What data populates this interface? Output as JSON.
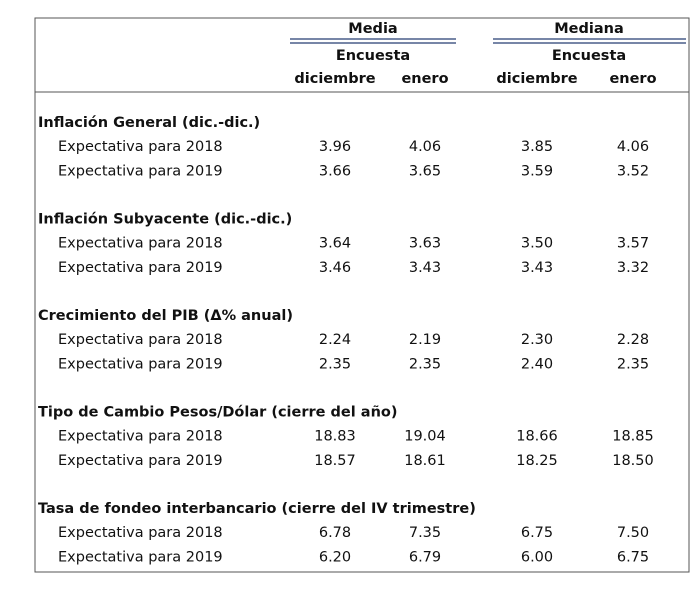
{
  "header": {
    "groups": [
      {
        "title": "Media",
        "subtitle": "Encuesta",
        "columns": [
          "diciembre",
          "enero"
        ]
      },
      {
        "title": "Mediana",
        "subtitle": "Encuesta",
        "columns": [
          "diciembre",
          "enero"
        ]
      }
    ]
  },
  "sections": [
    {
      "title": "Inflación General (dic.-dic.)",
      "rows": [
        {
          "label": "Expectativa para 2018",
          "values": [
            "3.96",
            "4.06",
            "3.85",
            "4.06"
          ]
        },
        {
          "label": "Expectativa para 2019",
          "values": [
            "3.66",
            "3.65",
            "3.59",
            "3.52"
          ]
        }
      ]
    },
    {
      "title": "Inflación Subyacente (dic.-dic.)",
      "rows": [
        {
          "label": "Expectativa para 2018",
          "values": [
            "3.64",
            "3.63",
            "3.50",
            "3.57"
          ]
        },
        {
          "label": "Expectativa para 2019",
          "values": [
            "3.46",
            "3.43",
            "3.43",
            "3.32"
          ]
        }
      ]
    },
    {
      "title": "Crecimiento del PIB (Δ% anual)",
      "rows": [
        {
          "label": "Expectativa para 2018",
          "values": [
            "2.24",
            "2.19",
            "2.30",
            "2.28"
          ]
        },
        {
          "label": "Expectativa para 2019",
          "values": [
            "2.35",
            "2.35",
            "2.40",
            "2.35"
          ]
        }
      ]
    },
    {
      "title": "Tipo de Cambio Pesos/Dólar (cierre del año)",
      "rows": [
        {
          "label": "Expectativa para 2018",
          "values": [
            "18.83",
            "19.04",
            "18.66",
            "18.85"
          ]
        },
        {
          "label": "Expectativa para 2019",
          "values": [
            "18.57",
            "18.61",
            "18.25",
            "18.50"
          ]
        }
      ]
    },
    {
      "title": "Tasa de fondeo interbancario (cierre del IV trimestre)",
      "rows": [
        {
          "label": "Expectativa para 2018",
          "values": [
            "6.78",
            "7.35",
            "6.75",
            "7.50"
          ]
        },
        {
          "label": "Expectativa para 2019",
          "values": [
            "6.20",
            "6.79",
            "6.00",
            "6.75"
          ]
        }
      ]
    }
  ]
}
